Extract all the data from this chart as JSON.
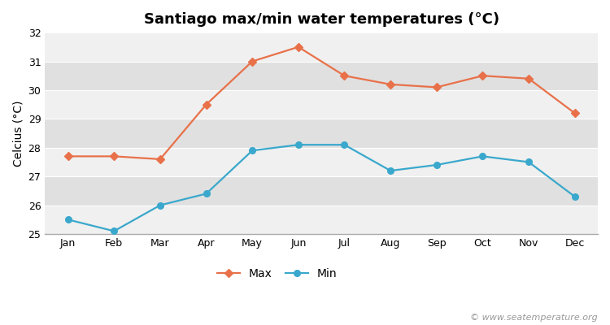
{
  "title": "Santiago max/min water temperatures (°C)",
  "ylabel": "Celcius (°C)",
  "months": [
    "Jan",
    "Feb",
    "Mar",
    "Apr",
    "May",
    "Jun",
    "Jul",
    "Aug",
    "Sep",
    "Oct",
    "Nov",
    "Dec"
  ],
  "max_values": [
    27.7,
    27.7,
    27.6,
    29.5,
    31.0,
    31.5,
    30.5,
    30.2,
    30.1,
    30.5,
    30.4,
    29.2
  ],
  "min_values": [
    25.5,
    25.1,
    26.0,
    26.4,
    27.9,
    28.1,
    28.1,
    27.2,
    27.4,
    27.7,
    27.5,
    26.3
  ],
  "max_color": "#e8714a",
  "min_color": "#3aa8cc",
  "bg_color": "#ffffff",
  "band_light": "#f0f0f0",
  "band_dark": "#e0e0e0",
  "ylim": [
    25.0,
    32.0
  ],
  "yticks": [
    25,
    26,
    27,
    28,
    29,
    30,
    31,
    32
  ],
  "legend_max": "Max",
  "legend_min": "Min",
  "watermark": "© www.seatemperature.org",
  "title_fontsize": 13,
  "label_fontsize": 10,
  "tick_fontsize": 9,
  "watermark_fontsize": 8
}
